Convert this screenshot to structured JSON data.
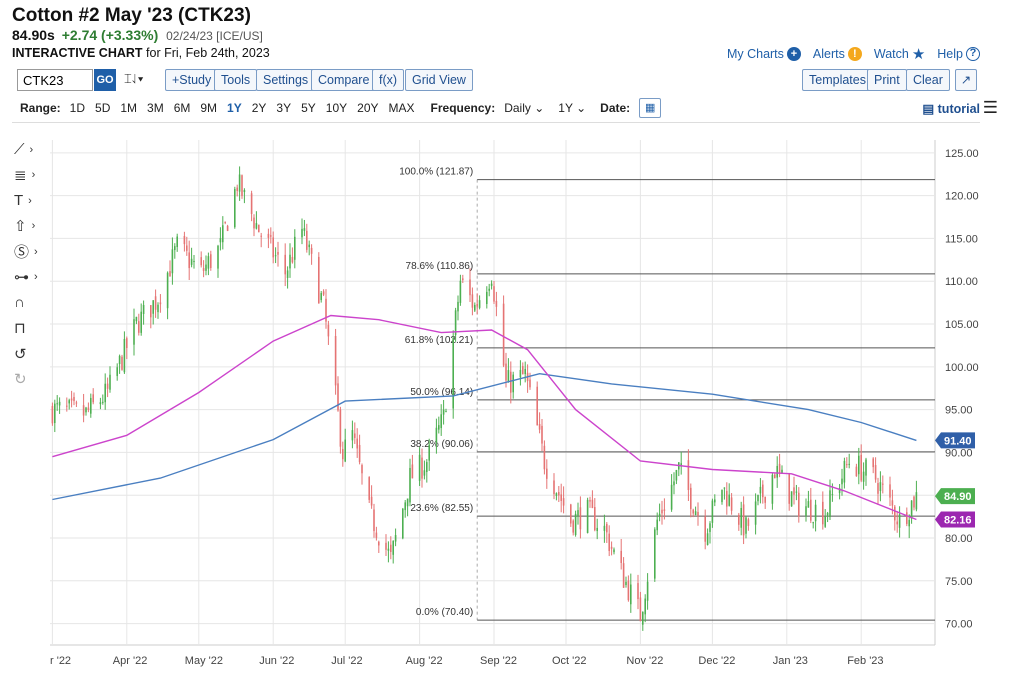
{
  "header": {
    "title": "Cotton #2 May '23 (CTK23)",
    "last": "84.90s",
    "change": "+2.74 (+3.33%)",
    "quote_date": "02/24/23 [ICE/US]",
    "chart_label": "INTERACTIVE CHART",
    "chart_for": "for Fri, Feb 24th, 2023"
  },
  "links": {
    "my_charts": "My Charts",
    "alerts": "Alerts",
    "watch": "Watch",
    "help": "Help"
  },
  "toolbar": {
    "symbol": "CTK23",
    "go": "GO",
    "study": "+Study",
    "tools": "Tools",
    "settings": "Settings",
    "compare": "Compare",
    "fx": "f(x)",
    "grid_view": "Grid View",
    "templates": "Templates",
    "print": "Print",
    "clear": "Clear"
  },
  "range": {
    "label": "Range:",
    "options": [
      "1D",
      "5D",
      "1M",
      "3M",
      "6M",
      "9M",
      "1Y",
      "2Y",
      "3Y",
      "5Y",
      "10Y",
      "20Y",
      "MAX"
    ],
    "selected": "1Y",
    "frequency_label": "Frequency:",
    "frequency": "Daily",
    "period": "1Y",
    "date_label": "Date:",
    "tutorial": "tutorial"
  },
  "icons": {
    "left_tools": [
      "line-tool-icon",
      "fib-tool-icon",
      "text-tool-icon",
      "arrow-tool-icon",
      "dollar-tool-icon",
      "measure-tool-icon",
      "magnet-icon",
      "lock-icon",
      "undo-icon",
      "redo-icon"
    ],
    "colors": {
      "brand": "#1f5fa8",
      "up": "#4caf50",
      "down": "#e57373",
      "ma_fast": "#cc44cc",
      "ma_slow": "#4a7fc1",
      "last_label": "#4caf50",
      "ma_fast_label": "#9c27b0",
      "ma_slow_label": "#2f5fa8"
    }
  },
  "chart_data": {
    "type": "candlestick",
    "x_tick_labels": [
      "r '22",
      "Apr '22",
      "May '22",
      "Jun '22",
      "Jul '22",
      "Aug '22",
      "Sep '22",
      "Oct '22",
      "Nov '22",
      "Dec '22",
      "Jan '23",
      "Feb '23"
    ],
    "y_tick_labels": [
      "125.00",
      "120.00",
      "115.00",
      "110.00",
      "105.00",
      "100.00",
      "95.00",
      "90.00",
      "85.00",
      "80.00",
      "75.00",
      "70.00"
    ],
    "ylim": [
      67.5,
      126.5
    ],
    "close_path": [
      {
        "date": "2022-03-01",
        "value": 95.0
      },
      {
        "date": "2022-03-15",
        "value": 94.5
      },
      {
        "date": "2022-03-24",
        "value": 97.0
      },
      {
        "date": "2022-04-05",
        "value": 105.0
      },
      {
        "date": "2022-04-14",
        "value": 108.0
      },
      {
        "date": "2022-04-22",
        "value": 114.0
      },
      {
        "date": "2022-05-02",
        "value": 111.0
      },
      {
        "date": "2022-05-10",
        "value": 114.0
      },
      {
        "date": "2022-05-17",
        "value": 121.5
      },
      {
        "date": "2022-05-26",
        "value": 116.0
      },
      {
        "date": "2022-06-06",
        "value": 111.0
      },
      {
        "date": "2022-06-13",
        "value": 116.0
      },
      {
        "date": "2022-06-22",
        "value": 107.0
      },
      {
        "date": "2022-06-30",
        "value": 90.0
      },
      {
        "date": "2022-07-04",
        "value": 92.0
      },
      {
        "date": "2022-07-11",
        "value": 83.0
      },
      {
        "date": "2022-07-20",
        "value": 77.5
      },
      {
        "date": "2022-07-28",
        "value": 87.0
      },
      {
        "date": "2022-08-04",
        "value": 89.0
      },
      {
        "date": "2022-08-11",
        "value": 94.0
      },
      {
        "date": "2022-08-18",
        "value": 110.0
      },
      {
        "date": "2022-08-24",
        "value": 107.0
      },
      {
        "date": "2022-08-31",
        "value": 111.0
      },
      {
        "date": "2022-09-06",
        "value": 98.0
      },
      {
        "date": "2022-09-14",
        "value": 99.0
      },
      {
        "date": "2022-09-22",
        "value": 89.0
      },
      {
        "date": "2022-10-03",
        "value": 82.0
      },
      {
        "date": "2022-10-10",
        "value": 83.0
      },
      {
        "date": "2022-10-17",
        "value": 81.0
      },
      {
        "date": "2022-10-24",
        "value": 76.0
      },
      {
        "date": "2022-11-01",
        "value": 71.0
      },
      {
        "date": "2022-11-08",
        "value": 82.0
      },
      {
        "date": "2022-11-17",
        "value": 88.0
      },
      {
        "date": "2022-11-28",
        "value": 81.0
      },
      {
        "date": "2022-12-05",
        "value": 86.0
      },
      {
        "date": "2022-12-15",
        "value": 81.0
      },
      {
        "date": "2022-12-27",
        "value": 88.0
      },
      {
        "date": "2023-01-05",
        "value": 84.0
      },
      {
        "date": "2023-01-17",
        "value": 83.0
      },
      {
        "date": "2023-01-27",
        "value": 89.0
      },
      {
        "date": "2023-02-07",
        "value": 87.0
      },
      {
        "date": "2023-02-17",
        "value": 82.0
      },
      {
        "date": "2023-02-24",
        "value": 84.9
      }
    ],
    "ma_fast": [
      {
        "date": "2022-03-01",
        "value": 89.5
      },
      {
        "date": "2022-04-01",
        "value": 92.0
      },
      {
        "date": "2022-05-01",
        "value": 97.0
      },
      {
        "date": "2022-06-01",
        "value": 103.0
      },
      {
        "date": "2022-06-25",
        "value": 106.0
      },
      {
        "date": "2022-07-15",
        "value": 105.5
      },
      {
        "date": "2022-08-10",
        "value": 104.0
      },
      {
        "date": "2022-08-31",
        "value": 104.3
      },
      {
        "date": "2022-09-15",
        "value": 102.0
      },
      {
        "date": "2022-10-05",
        "value": 95.0
      },
      {
        "date": "2022-11-01",
        "value": 89.0
      },
      {
        "date": "2022-12-01",
        "value": 88.0
      },
      {
        "date": "2023-01-03",
        "value": 87.5
      },
      {
        "date": "2023-01-25",
        "value": 85.5
      },
      {
        "date": "2023-02-24",
        "value": 82.16
      }
    ],
    "ma_slow": [
      {
        "date": "2022-03-01",
        "value": 84.5
      },
      {
        "date": "2022-04-15",
        "value": 87.0
      },
      {
        "date": "2022-06-01",
        "value": 91.5
      },
      {
        "date": "2022-07-01",
        "value": 96.0
      },
      {
        "date": "2022-08-15",
        "value": 96.6
      },
      {
        "date": "2022-09-20",
        "value": 99.2
      },
      {
        "date": "2022-10-20",
        "value": 98.0
      },
      {
        "date": "2022-12-01",
        "value": 96.8
      },
      {
        "date": "2023-01-10",
        "value": 95.0
      },
      {
        "date": "2023-02-01",
        "value": 93.5
      },
      {
        "date": "2023-02-24",
        "value": 91.4
      }
    ],
    "fibonacci": [
      {
        "label": "100.0% (121.87)",
        "value": 121.87
      },
      {
        "label": "78.6% (110.86)",
        "value": 110.86
      },
      {
        "label": "61.8% (102.21)",
        "value": 102.21
      },
      {
        "label": "50.0% (96.14)",
        "value": 96.14
      },
      {
        "label": "38.2% (90.06)",
        "value": 90.06
      },
      {
        "label": "23.6% (82.55)",
        "value": 82.55
      },
      {
        "label": "0.0% (70.40)",
        "value": 70.4
      }
    ],
    "fib_anchor_date": "2022-08-25",
    "price_labels": [
      {
        "text": "91.40",
        "value": 91.4,
        "color": "#2f5fa8"
      },
      {
        "text": "84.90",
        "value": 84.9,
        "color": "#4caf50"
      },
      {
        "text": "82.16",
        "value": 82.16,
        "color": "#9c27b0"
      }
    ],
    "grid": true
  }
}
